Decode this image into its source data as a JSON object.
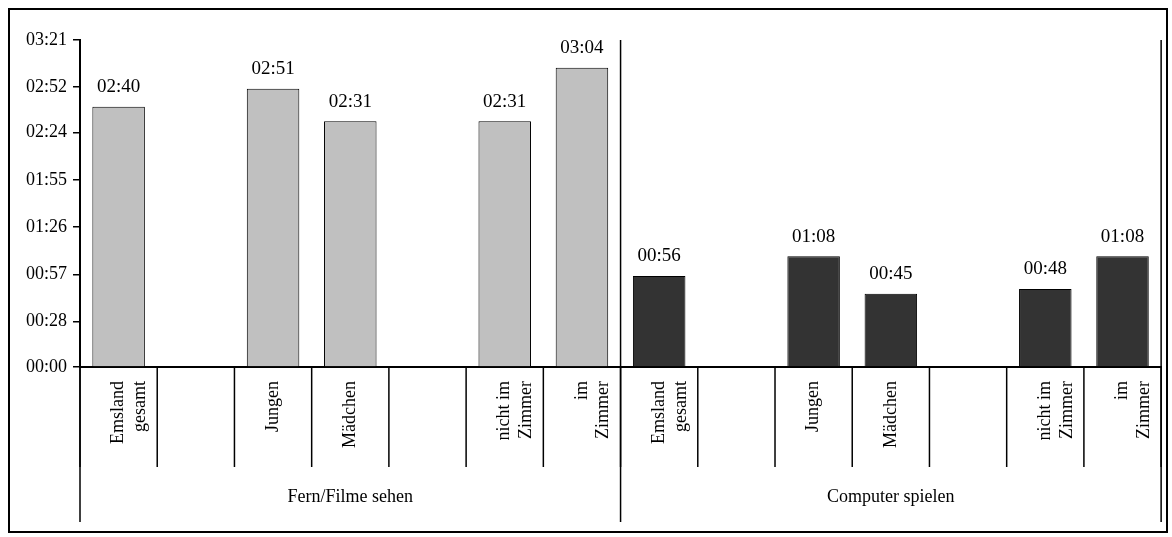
{
  "chart_data": {
    "type": "bar",
    "categories": [
      "Emsland gesamt",
      null,
      "Jungen",
      "Mädchen",
      null,
      "nicht im Zimmer",
      "im Zimmer",
      "Emsland gesamt",
      null,
      "Jungen",
      "Mädchen",
      null,
      "nicht im Zimmer",
      "im Zimmer"
    ],
    "values": [
      160,
      null,
      171,
      151,
      null,
      151,
      184,
      56,
      null,
      68,
      45,
      null,
      48,
      68
    ],
    "value_labels": [
      "02:40",
      null,
      "02:51",
      "02:31",
      null,
      "02:31",
      "03:04",
      "00:56",
      null,
      "01:08",
      "00:45",
      null,
      "00:48",
      "01:08"
    ],
    "colors": [
      "#c0c0c0",
      "#c0c0c0",
      "#c0c0c0",
      "#c0c0c0",
      "#c0c0c0",
      "#c0c0c0",
      "#c0c0c0",
      "#333333",
      "#333333",
      "#333333",
      "#333333",
      "#333333",
      "#333333",
      "#333333"
    ],
    "ylim": [
      0,
      201
    ],
    "yticks": [
      {
        "value": 0,
        "label": "00:00"
      },
      {
        "value": 28,
        "label": "00:28"
      },
      {
        "value": 57,
        "label": "00:57"
      },
      {
        "value": 86,
        "label": "01:26"
      },
      {
        "value": 115,
        "label": "01:55"
      },
      {
        "value": 144,
        "label": "02:24"
      },
      {
        "value": 172,
        "label": "02:52"
      },
      {
        "value": 201,
        "label": "03:21"
      }
    ],
    "annotations": [
      "Fern/Filme sehen",
      "Computer spielen"
    ],
    "grid": false,
    "legend": false
  }
}
